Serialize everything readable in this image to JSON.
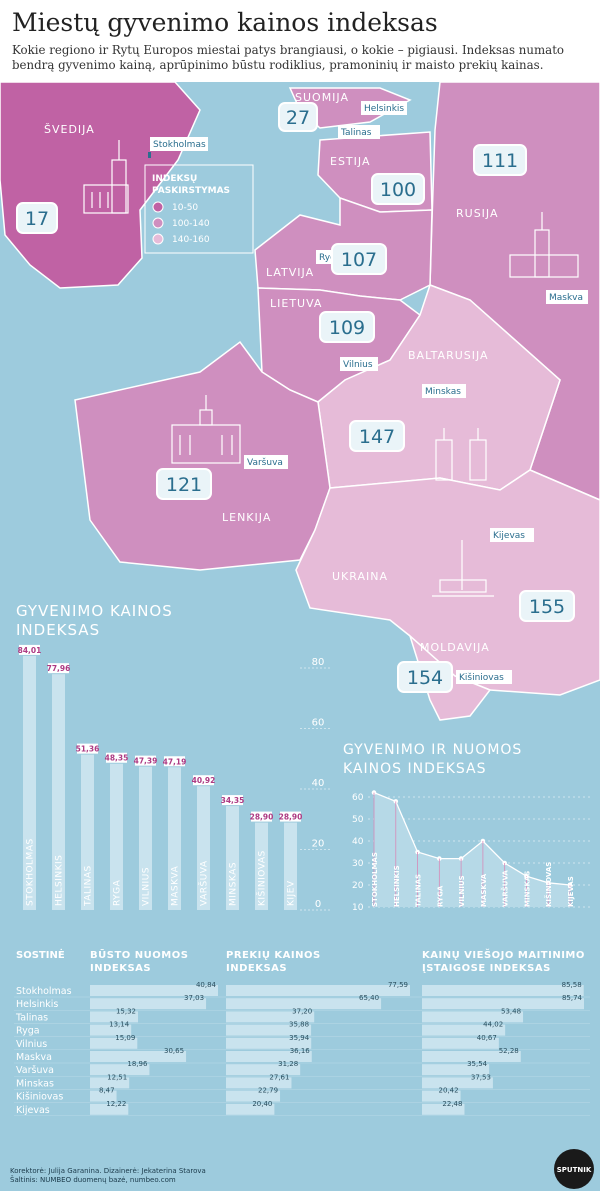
{
  "header": {
    "title": "Miestų gyvenimo kainos indeksas",
    "subtitle": "Kokie regiono ir Rytų Europos miestai patys brangiausi, o kokie – pigiausi. Indeksas numato bendrą gyvenimo kainą, aprūpinimo būstu rodiklius, pramoninių ir maisto prekių kainas."
  },
  "colors": {
    "background": "#9dcbdd",
    "tier_10_50": "#c062a4",
    "tier_100_140": "#cf8fbf",
    "tier_140_160": "#e6bbd8",
    "bar": "#c9e3ee",
    "bar_label": "#ad3a83"
  },
  "map": {
    "legend": {
      "title_line1": "INDEKSŲ",
      "title_line2": "PASKIRSTYMAS",
      "items": [
        {
          "label": "10-50",
          "color": "#c062a4"
        },
        {
          "label": "100-140",
          "color": "#cf8fbf"
        },
        {
          "label": "140-160",
          "color": "#e6bbd8"
        }
      ]
    },
    "countries": {
      "sweden": "ŠVEDIJA",
      "finland": "SUOMIJA",
      "estonia": "ESTIJA",
      "russia": "RUSIJA",
      "latvia": "LATVIJA",
      "lithuania": "LIETUVA",
      "belarus": "BALTARUSIJA",
      "poland": "LENKIJA",
      "ukraine": "UKRAINA",
      "moldova": "MOLDAVIJA"
    },
    "cities": {
      "stockholm": "Stokholmas",
      "helsinki": "Helsinkis",
      "tallinn": "Talinas",
      "riga": "Ryga",
      "vilnius": "Vilnius",
      "minsk": "Minskas",
      "moscow": "Maskva",
      "warsaw": "Varšuva",
      "kyiv": "Kijevas",
      "chisinau": "Kišiniovas"
    },
    "ranks": {
      "sweden": "17",
      "finland": "27",
      "estonia": "100",
      "russia": "111",
      "latvia": "107",
      "lithuania": "109",
      "belarus": "147",
      "poland": "121",
      "ukraine": "155",
      "moldova": "154"
    }
  },
  "chart_data": [
    {
      "type": "bar",
      "title": "GYVENIMO KAINOS INDEKSAS",
      "categories": [
        "STOKHOLMAS",
        "HELSINKIS",
        "TALINAS",
        "RYGA",
        "VILNIUS",
        "MASKVA",
        "VARŠUVA",
        "MINSKAS",
        "KIŠINIOVAS",
        "KIJEV"
      ],
      "values": [
        84.01,
        77.96,
        51.36,
        48.35,
        47.39,
        47.19,
        40.92,
        34.35,
        28.9,
        28.9
      ],
      "value_labels": [
        "84,01",
        "77,96",
        "51,36",
        "48,35",
        "47,39",
        "47,19",
        "40,92",
        "34,35",
        "28,90",
        "28,90"
      ],
      "ylim": [
        0,
        80
      ],
      "yticks": [
        "0",
        "20",
        "40",
        "60",
        "80"
      ]
    },
    {
      "type": "area",
      "title": "GYVENIMO IR NUOMOS KAINOS INDEKSAS",
      "categories": [
        "STOKHOLMAS",
        "HELSINKIS",
        "TALINAS",
        "RYGA",
        "VILNIUS",
        "MASKVA",
        "VARŠUVA",
        "MINSKAS",
        "KIŠINIOVAS",
        "KIJEVAS"
      ],
      "values": [
        62,
        58,
        35,
        32,
        32,
        40,
        30,
        24,
        21,
        20
      ],
      "ylim": [
        10,
        60
      ],
      "yticks": [
        "10",
        "20",
        "30",
        "40",
        "50",
        "60"
      ]
    },
    {
      "type": "table",
      "headers": {
        "city": "SOSTINĖ",
        "housing": "BŪSTO NUOMOS INDEKSAS",
        "goods": "PREKIŲ KAINOS INDEKSAS",
        "catering": "KAINŲ VIEŠOJO MAITINIMO ĮSTAIGOSE INDEKSAS"
      },
      "rows": [
        {
          "city": "Stokholmas",
          "housing": "40,84",
          "goods": "77,59",
          "catering": "85,58"
        },
        {
          "city": "Helsinkis",
          "housing": "37,03",
          "goods": "65,40",
          "catering": "85,74"
        },
        {
          "city": "Talinas",
          "housing": "15,32",
          "goods": "37,20",
          "catering": "53,48"
        },
        {
          "city": "Ryga",
          "housing": "13,14",
          "goods": "35,88",
          "catering": "44,02"
        },
        {
          "city": "Vilnius",
          "housing": "15,09",
          "goods": "35,94",
          "catering": "40,67"
        },
        {
          "city": "Maskva",
          "housing": "30,65",
          "goods": "36,16",
          "catering": "52,28"
        },
        {
          "city": "Varšuva",
          "housing": "18,96",
          "goods": "31,28",
          "catering": "35,54"
        },
        {
          "city": "Minskas",
          "housing": "12,51",
          "goods": "27,61",
          "catering": "37,53"
        },
        {
          "city": "Kišiniovas",
          "housing": "8,47",
          "goods": "22,79",
          "catering": "20,42"
        },
        {
          "city": "Kijevas",
          "housing": "12,22",
          "goods": "20,40",
          "catering": "22,48"
        }
      ]
    }
  ],
  "footer": {
    "credit_line1": "Korektorė: Julija Garanina. Dizainerė: Jekaterina Starova",
    "credit_line2": "Šaltinis: NUMBEO duomenų bazė, numbeo.com",
    "logo": "SPUTNIK"
  }
}
